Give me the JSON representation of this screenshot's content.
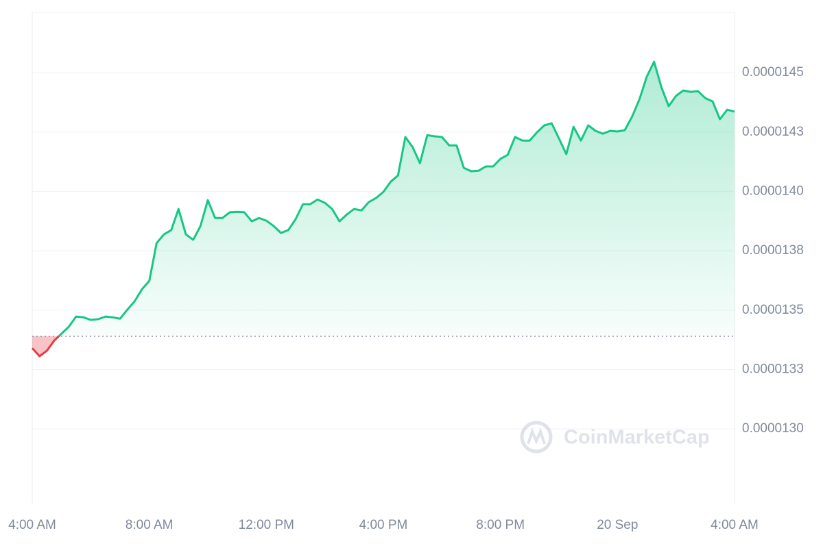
{
  "chart_data": {
    "type": "line",
    "watermark": "CoinMarketCap",
    "series": [
      {
        "color": "#16c784",
        "below_color": "#ea3943",
        "values": [
          1.334e-05,
          1.3306e-05,
          1.3329e-05,
          1.3372e-05,
          1.3401e-05,
          1.343e-05,
          1.3473e-05,
          1.347e-05,
          1.3459e-05,
          1.3462e-05,
          1.3473e-05,
          1.347e-05,
          1.3464e-05,
          1.3502e-05,
          1.3537e-05,
          1.3588e-05,
          1.3623e-05,
          1.3782e-05,
          1.3819e-05,
          1.3837e-05,
          1.3926e-05,
          1.3819e-05,
          1.3796e-05,
          1.3854e-05,
          1.3963e-05,
          1.3888e-05,
          1.3888e-05,
          1.3912e-05,
          1.3914e-05,
          1.3912e-05,
          1.3874e-05,
          1.3888e-05,
          1.3877e-05,
          1.3854e-05,
          1.3825e-05,
          1.3837e-05,
          1.3883e-05,
          1.3946e-05,
          1.3946e-05,
          1.3966e-05,
          1.3952e-05,
          1.3926e-05,
          1.3874e-05,
          1.3903e-05,
          1.3926e-05,
          1.392e-05,
          1.3955e-05,
          1.3972e-05,
          1.3998e-05,
          1.4041e-05,
          1.4067e-05,
          1.4229e-05,
          1.4186e-05,
          1.4119e-05,
          1.4237e-05,
          1.4232e-05,
          1.4229e-05,
          1.4194e-05,
          1.4194e-05,
          1.4099e-05,
          1.4085e-05,
          1.4087e-05,
          1.4105e-05,
          1.4105e-05,
          1.4137e-05,
          1.4154e-05,
          1.4229e-05,
          1.4214e-05,
          1.4214e-05,
          1.4249e-05,
          1.4278e-05,
          1.4287e-05,
          1.4223e-05,
          1.4157e-05,
          1.4272e-05,
          1.4214e-05,
          1.4278e-05,
          1.4255e-05,
          1.4243e-05,
          1.4255e-05,
          1.4252e-05,
          1.4258e-05,
          1.4315e-05,
          1.4387e-05,
          1.4483e-05,
          1.4546e-05,
          1.4439e-05,
          1.4359e-05,
          1.4402e-05,
          1.4425e-05,
          1.4419e-05,
          1.4422e-05,
          1.4393e-05,
          1.4379e-05,
          1.4304e-05,
          1.4344e-05,
          1.4336e-05
        ]
      }
    ],
    "reference_value": 1.339e-05,
    "xlim": [
      0,
      96
    ],
    "xticks": [
      {
        "value": 0,
        "label": "4:00 AM"
      },
      {
        "value": 16,
        "label": "8:00 AM"
      },
      {
        "value": 32,
        "label": "12:00 PM"
      },
      {
        "value": 48,
        "label": "4:00 PM"
      },
      {
        "value": 64,
        "label": "8:00 PM"
      },
      {
        "value": 80,
        "label": "20 Sep"
      },
      {
        "value": 96,
        "label": "4:00 AM"
      }
    ],
    "ylim": [
      1.2686e-05,
      1.4754e-05
    ],
    "yticks": [
      {
        "value": 1.3e-05,
        "label": "0.0000130"
      },
      {
        "value": 1.325e-05,
        "label": "0.0000133"
      },
      {
        "value": 1.35e-05,
        "label": "0.0000135"
      },
      {
        "value": 1.375e-05,
        "label": "0.0000138"
      },
      {
        "value": 1.4e-05,
        "label": "0.0000140"
      },
      {
        "value": 1.425e-05,
        "label": "0.0000143"
      },
      {
        "value": 1.45e-05,
        "label": "0.0000145"
      }
    ],
    "grid": true
  }
}
